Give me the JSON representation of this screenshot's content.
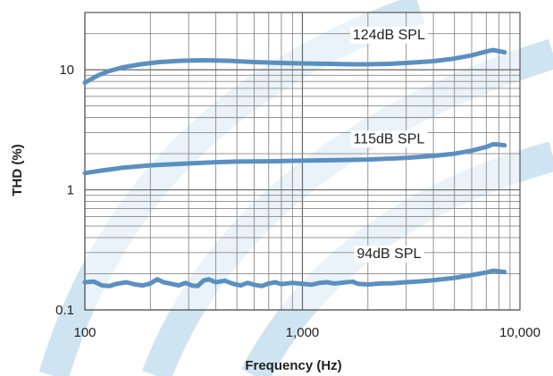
{
  "chart_data": {
    "type": "line",
    "xlabel": "Frequency (Hz)",
    "ylabel": "THD (%)",
    "x_scale": "log",
    "y_scale": "log",
    "xlim": [
      100,
      10000
    ],
    "ylim": [
      0.1,
      30
    ],
    "x_ticks": [
      {
        "value": 100,
        "label": "100"
      },
      {
        "value": 1000,
        "label": "1,000"
      },
      {
        "value": 10000,
        "label": "10,000"
      }
    ],
    "y_ticks": [
      {
        "value": 0.1,
        "label": "0.1"
      },
      {
        "value": 1,
        "label": "1"
      },
      {
        "value": 10,
        "label": "10"
      }
    ],
    "grid": true,
    "line_color": "#5b8fc0",
    "background_stripe_color": "#cfe4f1",
    "series": [
      {
        "name": "124dB SPL",
        "label_at": [
          2500,
          18
        ],
        "points": [
          [
            100,
            7.8
          ],
          [
            115,
            9.0
          ],
          [
            130,
            9.8
          ],
          [
            150,
            10.5
          ],
          [
            180,
            11.1
          ],
          [
            220,
            11.6
          ],
          [
            280,
            11.9
          ],
          [
            350,
            12.0
          ],
          [
            450,
            11.9
          ],
          [
            600,
            11.6
          ],
          [
            800,
            11.4
          ],
          [
            1000,
            11.3
          ],
          [
            1300,
            11.2
          ],
          [
            1700,
            11.1
          ],
          [
            2000,
            11.1
          ],
          [
            2500,
            11.2
          ],
          [
            3000,
            11.4
          ],
          [
            4000,
            11.8
          ],
          [
            5000,
            12.4
          ],
          [
            6000,
            13.2
          ],
          [
            7000,
            14.2
          ],
          [
            7500,
            14.6
          ],
          [
            8000,
            14.3
          ],
          [
            8500,
            14.0
          ]
        ]
      },
      {
        "name": "115dB SPL",
        "label_at": [
          2500,
          2.45
        ],
        "points": [
          [
            100,
            1.38
          ],
          [
            120,
            1.45
          ],
          [
            150,
            1.53
          ],
          [
            200,
            1.6
          ],
          [
            300,
            1.66
          ],
          [
            400,
            1.7
          ],
          [
            500,
            1.72
          ],
          [
            700,
            1.73
          ],
          [
            1000,
            1.75
          ],
          [
            1500,
            1.77
          ],
          [
            2000,
            1.79
          ],
          [
            2500,
            1.82
          ],
          [
            3000,
            1.85
          ],
          [
            4000,
            1.92
          ],
          [
            5000,
            2.0
          ],
          [
            6000,
            2.12
          ],
          [
            7000,
            2.28
          ],
          [
            7500,
            2.4
          ],
          [
            8000,
            2.38
          ],
          [
            8500,
            2.35
          ]
        ]
      },
      {
        "name": "94dB SPL",
        "label_at": [
          2500,
          0.27
        ],
        "points": [
          [
            100,
            0.17
          ],
          [
            110,
            0.172
          ],
          [
            120,
            0.16
          ],
          [
            130,
            0.158
          ],
          [
            140,
            0.165
          ],
          [
            155,
            0.17
          ],
          [
            170,
            0.163
          ],
          [
            185,
            0.16
          ],
          [
            200,
            0.166
          ],
          [
            215,
            0.18
          ],
          [
            230,
            0.17
          ],
          [
            250,
            0.165
          ],
          [
            270,
            0.16
          ],
          [
            290,
            0.168
          ],
          [
            310,
            0.16
          ],
          [
            330,
            0.158
          ],
          [
            350,
            0.175
          ],
          [
            370,
            0.18
          ],
          [
            400,
            0.17
          ],
          [
            440,
            0.175
          ],
          [
            480,
            0.165
          ],
          [
            520,
            0.16
          ],
          [
            560,
            0.168
          ],
          [
            600,
            0.162
          ],
          [
            650,
            0.158
          ],
          [
            700,
            0.166
          ],
          [
            750,
            0.17
          ],
          [
            800,
            0.164
          ],
          [
            900,
            0.168
          ],
          [
            1000,
            0.165
          ],
          [
            1100,
            0.162
          ],
          [
            1200,
            0.168
          ],
          [
            1300,
            0.17
          ],
          [
            1400,
            0.166
          ],
          [
            1500,
            0.168
          ],
          [
            1700,
            0.172
          ],
          [
            1800,
            0.165
          ],
          [
            2000,
            0.163
          ],
          [
            2300,
            0.166
          ],
          [
            2600,
            0.167
          ],
          [
            3000,
            0.17
          ],
          [
            3500,
            0.173
          ],
          [
            4000,
            0.177
          ],
          [
            5000,
            0.185
          ],
          [
            6000,
            0.195
          ],
          [
            7000,
            0.205
          ],
          [
            7500,
            0.212
          ],
          [
            8000,
            0.21
          ],
          [
            8500,
            0.207
          ]
        ]
      }
    ]
  }
}
